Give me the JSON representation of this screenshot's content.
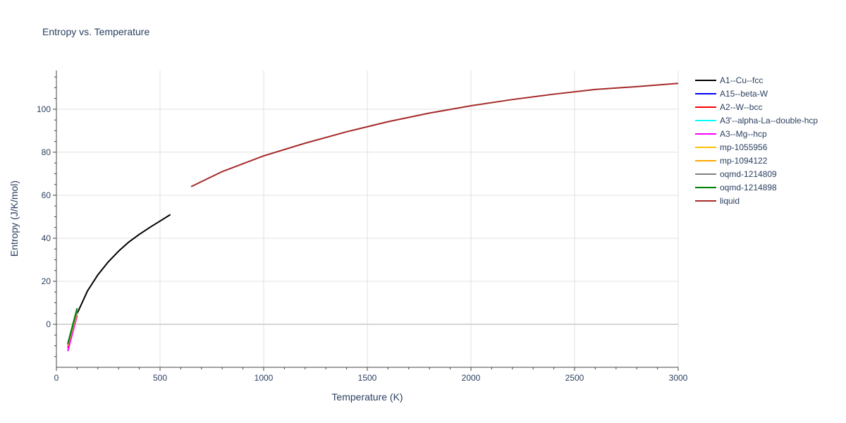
{
  "chart_data": {
    "type": "line",
    "title": "Entropy vs. Temperature",
    "xlabel": "Temperature (K)",
    "ylabel": "Entropy (J/K/mol)",
    "xlim": [
      0,
      3000
    ],
    "ylim": [
      -20,
      118
    ],
    "x_ticks": [
      0,
      500,
      1000,
      1500,
      2000,
      2500,
      3000
    ],
    "x_tick_labels": [
      "0",
      "500",
      "1000",
      "1500",
      "2000",
      "2500",
      "3000"
    ],
    "y_ticks": [
      0,
      20,
      40,
      60,
      80,
      100
    ],
    "y_tick_labels": [
      "0",
      "20",
      "40",
      "60",
      "80",
      "100"
    ],
    "grid": true,
    "legend_position": "right",
    "series": [
      {
        "name": "A1--Cu--fcc",
        "color": "#000000",
        "x": [
          55,
          100,
          150,
          200,
          250,
          300,
          350,
          400,
          450,
          500,
          550
        ],
        "y": [
          -9,
          5,
          15.5,
          23,
          29,
          34,
          38.3,
          41.8,
          45,
          48,
          51
        ]
      },
      {
        "name": "A15--beta-W",
        "color": "#0000ff",
        "x": [
          55,
          100
        ],
        "y": [
          -10,
          5
        ]
      },
      {
        "name": "A2--W--bcc",
        "color": "#ff0000",
        "x": [
          55,
          100
        ],
        "y": [
          -11,
          4
        ]
      },
      {
        "name": "A3'--alpha-La--double-hcp",
        "color": "#00ffff",
        "x": [
          55,
          100
        ],
        "y": [
          -10,
          5.5
        ]
      },
      {
        "name": "A3--Mg--hcp",
        "color": "#ff00ff",
        "x": [
          55,
          100
        ],
        "y": [
          -12.5,
          4
        ]
      },
      {
        "name": "mp-1055956",
        "color": "#ffc000",
        "x": [
          55,
          100
        ],
        "y": [
          -10,
          5
        ]
      },
      {
        "name": "mp-1094122",
        "color": "#ffa500",
        "x": [
          55,
          100
        ],
        "y": [
          -10,
          5
        ]
      },
      {
        "name": "oqmd-1214809",
        "color": "#808080",
        "x": [
          55,
          100
        ],
        "y": [
          -9.5,
          6
        ]
      },
      {
        "name": "oqmd-1214898",
        "color": "#008000",
        "x": [
          55,
          100
        ],
        "y": [
          -9,
          7.5
        ]
      },
      {
        "name": "liquid",
        "color": "#a52a2a",
        "x": [
          650,
          800,
          1000,
          1200,
          1400,
          1600,
          1800,
          2000,
          2200,
          2400,
          2600,
          2800,
          3000
        ],
        "y": [
          64,
          71,
          78.3,
          84.2,
          89.5,
          94.2,
          98.2,
          101.6,
          104.5,
          107,
          109.2,
          110.5,
          112
        ]
      }
    ]
  }
}
